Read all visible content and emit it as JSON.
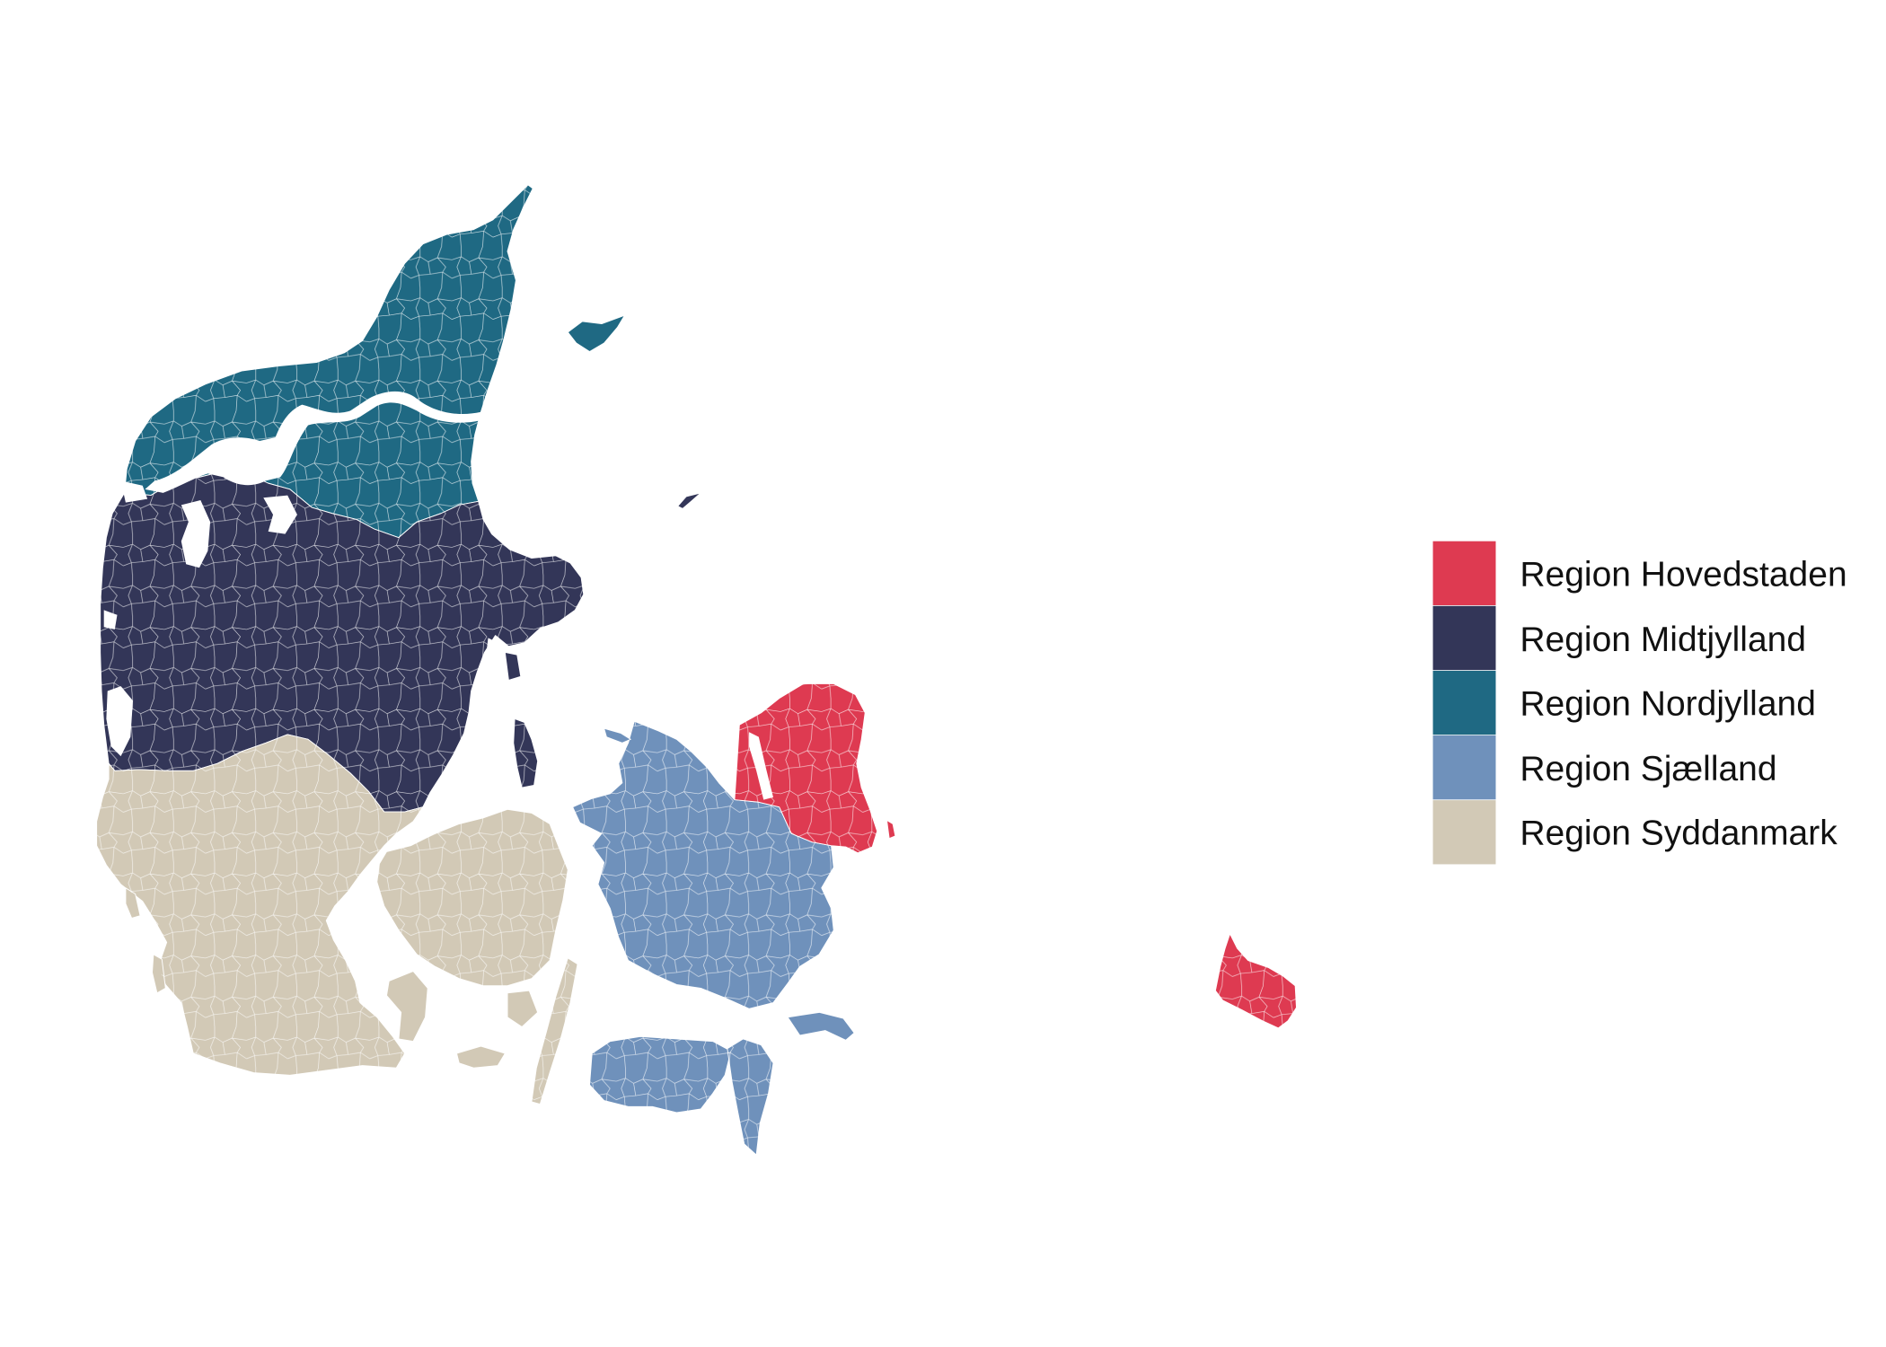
{
  "legend": {
    "items": [
      {
        "label": "Region Hovedstaden",
        "color": "#DE3A51"
      },
      {
        "label": "Region Midtjylland",
        "color": "#333658"
      },
      {
        "label": "Region Nordjylland",
        "color": "#1F6983"
      },
      {
        "label": "Region Sjælland",
        "color": "#6F91BB"
      },
      {
        "label": "Region Syddanmark",
        "color": "#D2C9B6"
      }
    ]
  }
}
